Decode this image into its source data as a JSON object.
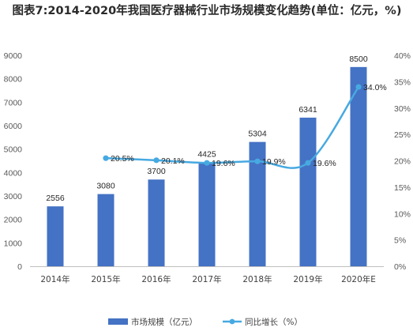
{
  "title": "图表7:2014-2020年我国医疗器械行业市场规模变化趋势(单位：亿元，%)",
  "chart_data": {
    "type": "bar",
    "categories": [
      "2014年",
      "2015年",
      "2016年",
      "2017年",
      "2018年",
      "2019年",
      "2020年E"
    ],
    "series": [
      {
        "name": "市场规模（亿元）",
        "type": "bar",
        "axis": "left",
        "color": "#4472c4",
        "values": [
          2556,
          3080,
          3700,
          4425,
          5304,
          6341,
          8500
        ],
        "labels": [
          "2556",
          "3080",
          "3700",
          "4425",
          "5304",
          "6341",
          "8500"
        ]
      },
      {
        "name": "同比增长（%）",
        "type": "line",
        "axis": "right",
        "color": "#47a9e1",
        "values": [
          null,
          20.5,
          20.1,
          19.6,
          19.9,
          19.6,
          34.0
        ],
        "labels": [
          "",
          "20.5%",
          "20.1%",
          "19.6%",
          "19.9%",
          "19.6%",
          "34.0%"
        ]
      }
    ],
    "y_left": {
      "min": 0,
      "max": 9000,
      "ticks": [
        "0",
        "1000",
        "2000",
        "3000",
        "4000",
        "5000",
        "6000",
        "7000",
        "8000",
        "9000"
      ]
    },
    "y_right": {
      "min": 0,
      "max": 40,
      "ticks": [
        "0%",
        "5%",
        "10%",
        "15%",
        "20%",
        "25%",
        "30%",
        "35%",
        "40%"
      ]
    },
    "grid": false,
    "legend": "bottom"
  }
}
